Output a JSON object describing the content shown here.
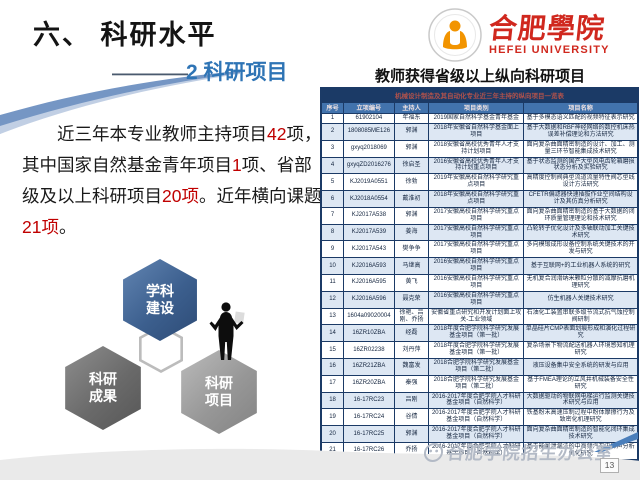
{
  "slide": {
    "title": "六、 科研水平",
    "section_label": "2  科研项目",
    "watermark": "合肥学院招生办公室",
    "page_number": "13"
  },
  "logo": {
    "cn": "合肥學院",
    "en": "HEFEI UNIVERSITY"
  },
  "intro": {
    "segments": [
      {
        "text": "近三年本专业教师主持项目",
        "highlight": false
      },
      {
        "text": "42",
        "highlight": true
      },
      {
        "text": "项，其中国家自然基金青年项目",
        "highlight": false
      },
      {
        "text": "1",
        "highlight": true
      },
      {
        "text": "项、省部级及以上科研项目",
        "highlight": false
      },
      {
        "text": "20项",
        "highlight": true
      },
      {
        "text": "。近年横向课题",
        "highlight": false
      },
      {
        "text": "21项",
        "highlight": true
      },
      {
        "text": "。",
        "highlight": false
      }
    ]
  },
  "diagram": {
    "hex_top": "学科建设",
    "hex_left": "科研成果",
    "hex_right": "科研项目"
  },
  "table": {
    "title": "教师获得省级以上纵向科研项目",
    "caption": "机械设计制造及其自动化专业近三年主持的纵向项目一览表",
    "columns": [
      "序号",
      "立项编号",
      "主持人",
      "项目类别",
      "项目名称"
    ],
    "rows": [
      [
        "1",
        "61902104",
        "年福东",
        "2019国家自然科学基金青年基金",
        "基于多模态语义匹配的视频特征表示研究"
      ],
      [
        "2",
        "1808085ME126",
        "郭渊",
        "2018年安徽省自然科学基金面上项目",
        "基于大数据和RBF神经网络的数控机床热误差补偿理论和方法研究"
      ],
      [
        "3",
        "gxyq2018069",
        "郭渊",
        "2018安徽省高校优秀青年人才支持计划项目",
        "面向复杂曲面精密制造的设计、加工、测量三环节智能集成技术研究"
      ],
      [
        "4",
        "gxyqZD2016276",
        "徐启圣",
        "2016安徽省高校优秀青年人才支持计划重点项目",
        "基于状态监测的国产大型风电齿轮箱磨损状态分析及实验研究"
      ],
      [
        "5",
        "KJ2019A0551",
        "徐勃",
        "2019年安徽高校自然科学研究重点项目",
        "高精度控制阀典型流道流量特性阀芯型线设计方法研究"
      ],
      [
        "6",
        "KJ2018A0554",
        "戴淮初",
        "2018年安徽高校自然科学研究重点项目",
        "CFETR偏滤器快速插拔作业空间结构设计及其仿真分析研究"
      ],
      [
        "7",
        "KJ2017A538",
        "郭渊",
        "2017安徽高校自然科学研究重点项目",
        "面向复杂曲面精密制造的基于大数据的闭环质量管理理论和技术研究"
      ],
      [
        "8",
        "KJ2017A539",
        "姜海",
        "2017安徽高校自然科学研究重点项目",
        "凸轮转子优化设计及多轴联动加工关键技术研究"
      ],
      [
        "9",
        "KJ2017A543",
        "樊争争",
        "2017安徽高校自然科学研究重点项目",
        "多向模锻成形设备控制系统关键技术的开发与研究"
      ],
      [
        "10",
        "KJ2016A593",
        "马继高",
        "2016安徽高校自然科学研究重点项目",
        "基于互联网+的工业机器人系统的研究"
      ],
      [
        "11",
        "KJ2016A595",
        "黄飞",
        "2016安徽高校自然科学研究重点项目",
        "无机复合润滑纳米颗粒分散的减摩抗磨机理研究"
      ],
      [
        "12",
        "KJ2016A596",
        "聂克荣",
        "2016安徽高校自然科学研究重点项目",
        "仿生机器人关键技术研究"
      ],
      [
        "13",
        "1604a09020004",
        "徐艳、吕刚、乔扬",
        "安徽省重点研究和开发计划面上攻关-工业领域",
        "石油化工装置串联多级节流式抗气蚀控制阀研制"
      ],
      [
        "14",
        "16ZR10ZBA",
        "经磊",
        "2018年度合肥学院科学研究发展基金项目（第一批）",
        "单晶硅片CMP表面划痕形成和演化过程研究"
      ],
      [
        "15",
        "16ZR02238",
        "刘丹萍",
        "2018年度合肥学院科学研究发展基金项目（第一批）",
        "复杂场景下物流配送机器人环境感知机理研究"
      ],
      [
        "16",
        "16ZR21ZBA",
        "魏富发",
        "2018合肥学院科学研究发展基金项目（第二批）",
        "液压设备集中安全系统的研发与应用"
      ],
      [
        "17",
        "16ZR20ZBA",
        "秦强",
        "2018合肥学院科学研究发展基金项目（第二批）",
        "基于FMEA理论的立风井机械装备安全性研究"
      ],
      [
        "18",
        "16-17RC23",
        "吕刚",
        "2016-2017年度合肥学院人才科研基金项目（自然科学）",
        "大数据驱动的物联网电梯运行监测关键技术研究与应用"
      ],
      [
        "19",
        "16-17RC24",
        "谷倩",
        "2016-2017年度合肥学院人才科研基金项目（自然科学）",
        "铁基粉末高速压制过程中粉体摩擦行为及致密化机理研究"
      ],
      [
        "20",
        "16-17RC25",
        "郭渊",
        "2016-2017年度合肥学院人才科研基金项目（自然科学）",
        "面向复杂曲面精密制造的智能化闭环集成技术研究"
      ],
      [
        "21",
        "16-17RC26",
        "乔扬",
        "2016-2017年度合肥学院人才科研基金项目（自然科学）",
        "基于能量泄漏法的中高频汽车内噪声分析优化研究"
      ]
    ]
  },
  "colors": {
    "accent_blue": "#2e74b5",
    "highlight_red": "#c00000",
    "brand_red": "#d0281e",
    "table_caption_bg": "#1b3a66",
    "table_caption_text": "#b0524c",
    "column_header_bg": "#4273ad",
    "row_alt_bg": "#dde7f3",
    "hex_blue": "#3c5f8e",
    "swoosh_blue": "#7596c4"
  }
}
